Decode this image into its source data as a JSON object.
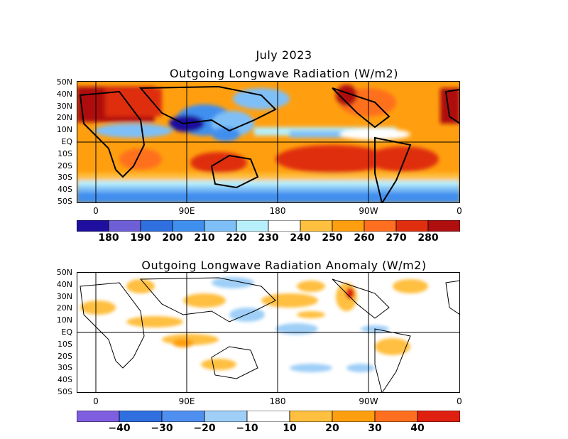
{
  "page_title": "July 2023",
  "top_panel": {
    "title": "Outgoing Longwave Radiation (W/m2)",
    "lat_labels": [
      "50N",
      "40N",
      "30N",
      "20N",
      "10N",
      "EQ",
      "10S",
      "20S",
      "30S",
      "40S",
      "50S"
    ],
    "lon_labels": [
      "0",
      "90E",
      "180",
      "90W",
      "0"
    ],
    "colorbar": {
      "colors": [
        "#1f0f9f",
        "#6f5fd7",
        "#2f6fdf",
        "#3f8fef",
        "#7fbff7",
        "#b7effb",
        "#ffffff",
        "#ffbf3f",
        "#ff9f0f",
        "#ff6f1f",
        "#df2f0f",
        "#af0f0f"
      ],
      "labels": [
        "180",
        "190",
        "200",
        "210",
        "220",
        "230",
        "240",
        "250",
        "260",
        "270",
        "280"
      ]
    }
  },
  "bottom_panel": {
    "title": "Outgoing Longwave Radiation Anomaly (W/m2)",
    "lat_labels": [
      "50N",
      "40N",
      "30N",
      "20N",
      "10N",
      "EQ",
      "10S",
      "20S",
      "30S",
      "40S",
      "50S"
    ],
    "lon_labels": [
      "0",
      "90E",
      "180",
      "90W",
      "0"
    ],
    "colorbar": {
      "colors": [
        "#7f5fdf",
        "#2f6fdf",
        "#4f8fef",
        "#9fcff7",
        "#ffffff",
        "#ffbf3f",
        "#ff9f0f",
        "#ff6f1f",
        "#df1f0f"
      ],
      "labels": [
        "−40",
        "−30",
        "−20",
        "−10",
        "10",
        "20",
        "30",
        "40"
      ]
    }
  }
}
